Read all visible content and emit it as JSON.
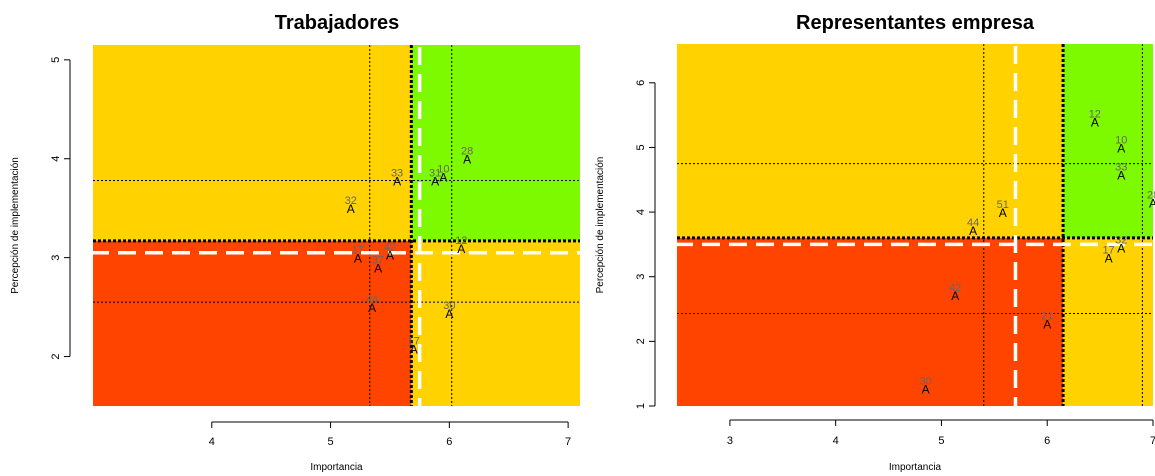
{
  "chart_data": [
    {
      "type": "scatter",
      "title": "Trabajadores",
      "xlabel": "Importancia",
      "ylabel": "Percepción de implementación",
      "xlim": [
        3.0,
        7.1
      ],
      "ylim": [
        1.5,
        5.15
      ],
      "xticks": [
        4,
        5,
        6,
        7
      ],
      "yticks": [
        2,
        3,
        4,
        5
      ],
      "marker": "A",
      "quadrant_split": {
        "x": 5.68,
        "y": 3.17
      },
      "quadrant_colors": {
        "top_left": "#ffd200",
        "top_right": "#7efa00",
        "bottom_left": "#ff4400",
        "bottom_right": "#ffd200"
      },
      "dashed_white": {
        "x": 5.75,
        "y": 3.05
      },
      "dotted_ref_x": [
        5.33,
        6.02
      ],
      "dotted_ref_y": [
        3.78,
        2.55
      ],
      "points": [
        {
          "label": "28",
          "x": 6.15,
          "y": 4.0
        },
        {
          "label": "10",
          "x": 5.95,
          "y": 3.82
        },
        {
          "label": "31",
          "x": 5.88,
          "y": 3.78
        },
        {
          "label": "33",
          "x": 5.56,
          "y": 3.78
        },
        {
          "label": "32",
          "x": 5.17,
          "y": 3.5
        },
        {
          "label": "12",
          "x": 6.1,
          "y": 3.1
        },
        {
          "label": "42",
          "x": 5.5,
          "y": 3.03
        },
        {
          "label": "17",
          "x": 5.23,
          "y": 3.0
        },
        {
          "label": "37",
          "x": 5.4,
          "y": 2.9
        },
        {
          "label": "44",
          "x": 5.35,
          "y": 2.5
        },
        {
          "label": "30",
          "x": 6.0,
          "y": 2.44
        },
        {
          "label": "17",
          "x": 5.7,
          "y": 2.08
        }
      ]
    },
    {
      "type": "scatter",
      "title": "Representantes empresa",
      "xlabel": "Importancia",
      "ylabel": "Percepción de implementación",
      "xlim": [
        2.5,
        7.0
      ],
      "ylim": [
        1.0,
        6.6
      ],
      "xticks": [
        3,
        4,
        5,
        6,
        7
      ],
      "yticks": [
        1,
        2,
        3,
        4,
        5,
        6
      ],
      "marker": "A",
      "quadrant_split": {
        "x": 6.15,
        "y": 3.6
      },
      "quadrant_colors": {
        "top_left": "#ffd200",
        "top_right": "#7efa00",
        "bottom_left": "#ff4400",
        "bottom_right": "#ffd200"
      },
      "dashed_white": {
        "x": 5.7,
        "y": 3.5
      },
      "dotted_ref_x": [
        5.4,
        6.9
      ],
      "dotted_ref_y": [
        4.75,
        2.43
      ],
      "points": [
        {
          "label": "12",
          "x": 6.45,
          "y": 5.4
        },
        {
          "label": "10",
          "x": 6.7,
          "y": 5.0
        },
        {
          "label": "33",
          "x": 6.7,
          "y": 4.58
        },
        {
          "label": "28",
          "x": 7.0,
          "y": 4.15
        },
        {
          "label": "51",
          "x": 5.58,
          "y": 4.0
        },
        {
          "label": "44",
          "x": 5.3,
          "y": 3.72
        },
        {
          "label": "32",
          "x": 6.7,
          "y": 3.45
        },
        {
          "label": "17",
          "x": 6.58,
          "y": 3.3
        },
        {
          "label": "42",
          "x": 5.13,
          "y": 2.72
        },
        {
          "label": "21",
          "x": 6.0,
          "y": 2.28
        },
        {
          "label": "30",
          "x": 4.85,
          "y": 1.27
        }
      ]
    }
  ]
}
